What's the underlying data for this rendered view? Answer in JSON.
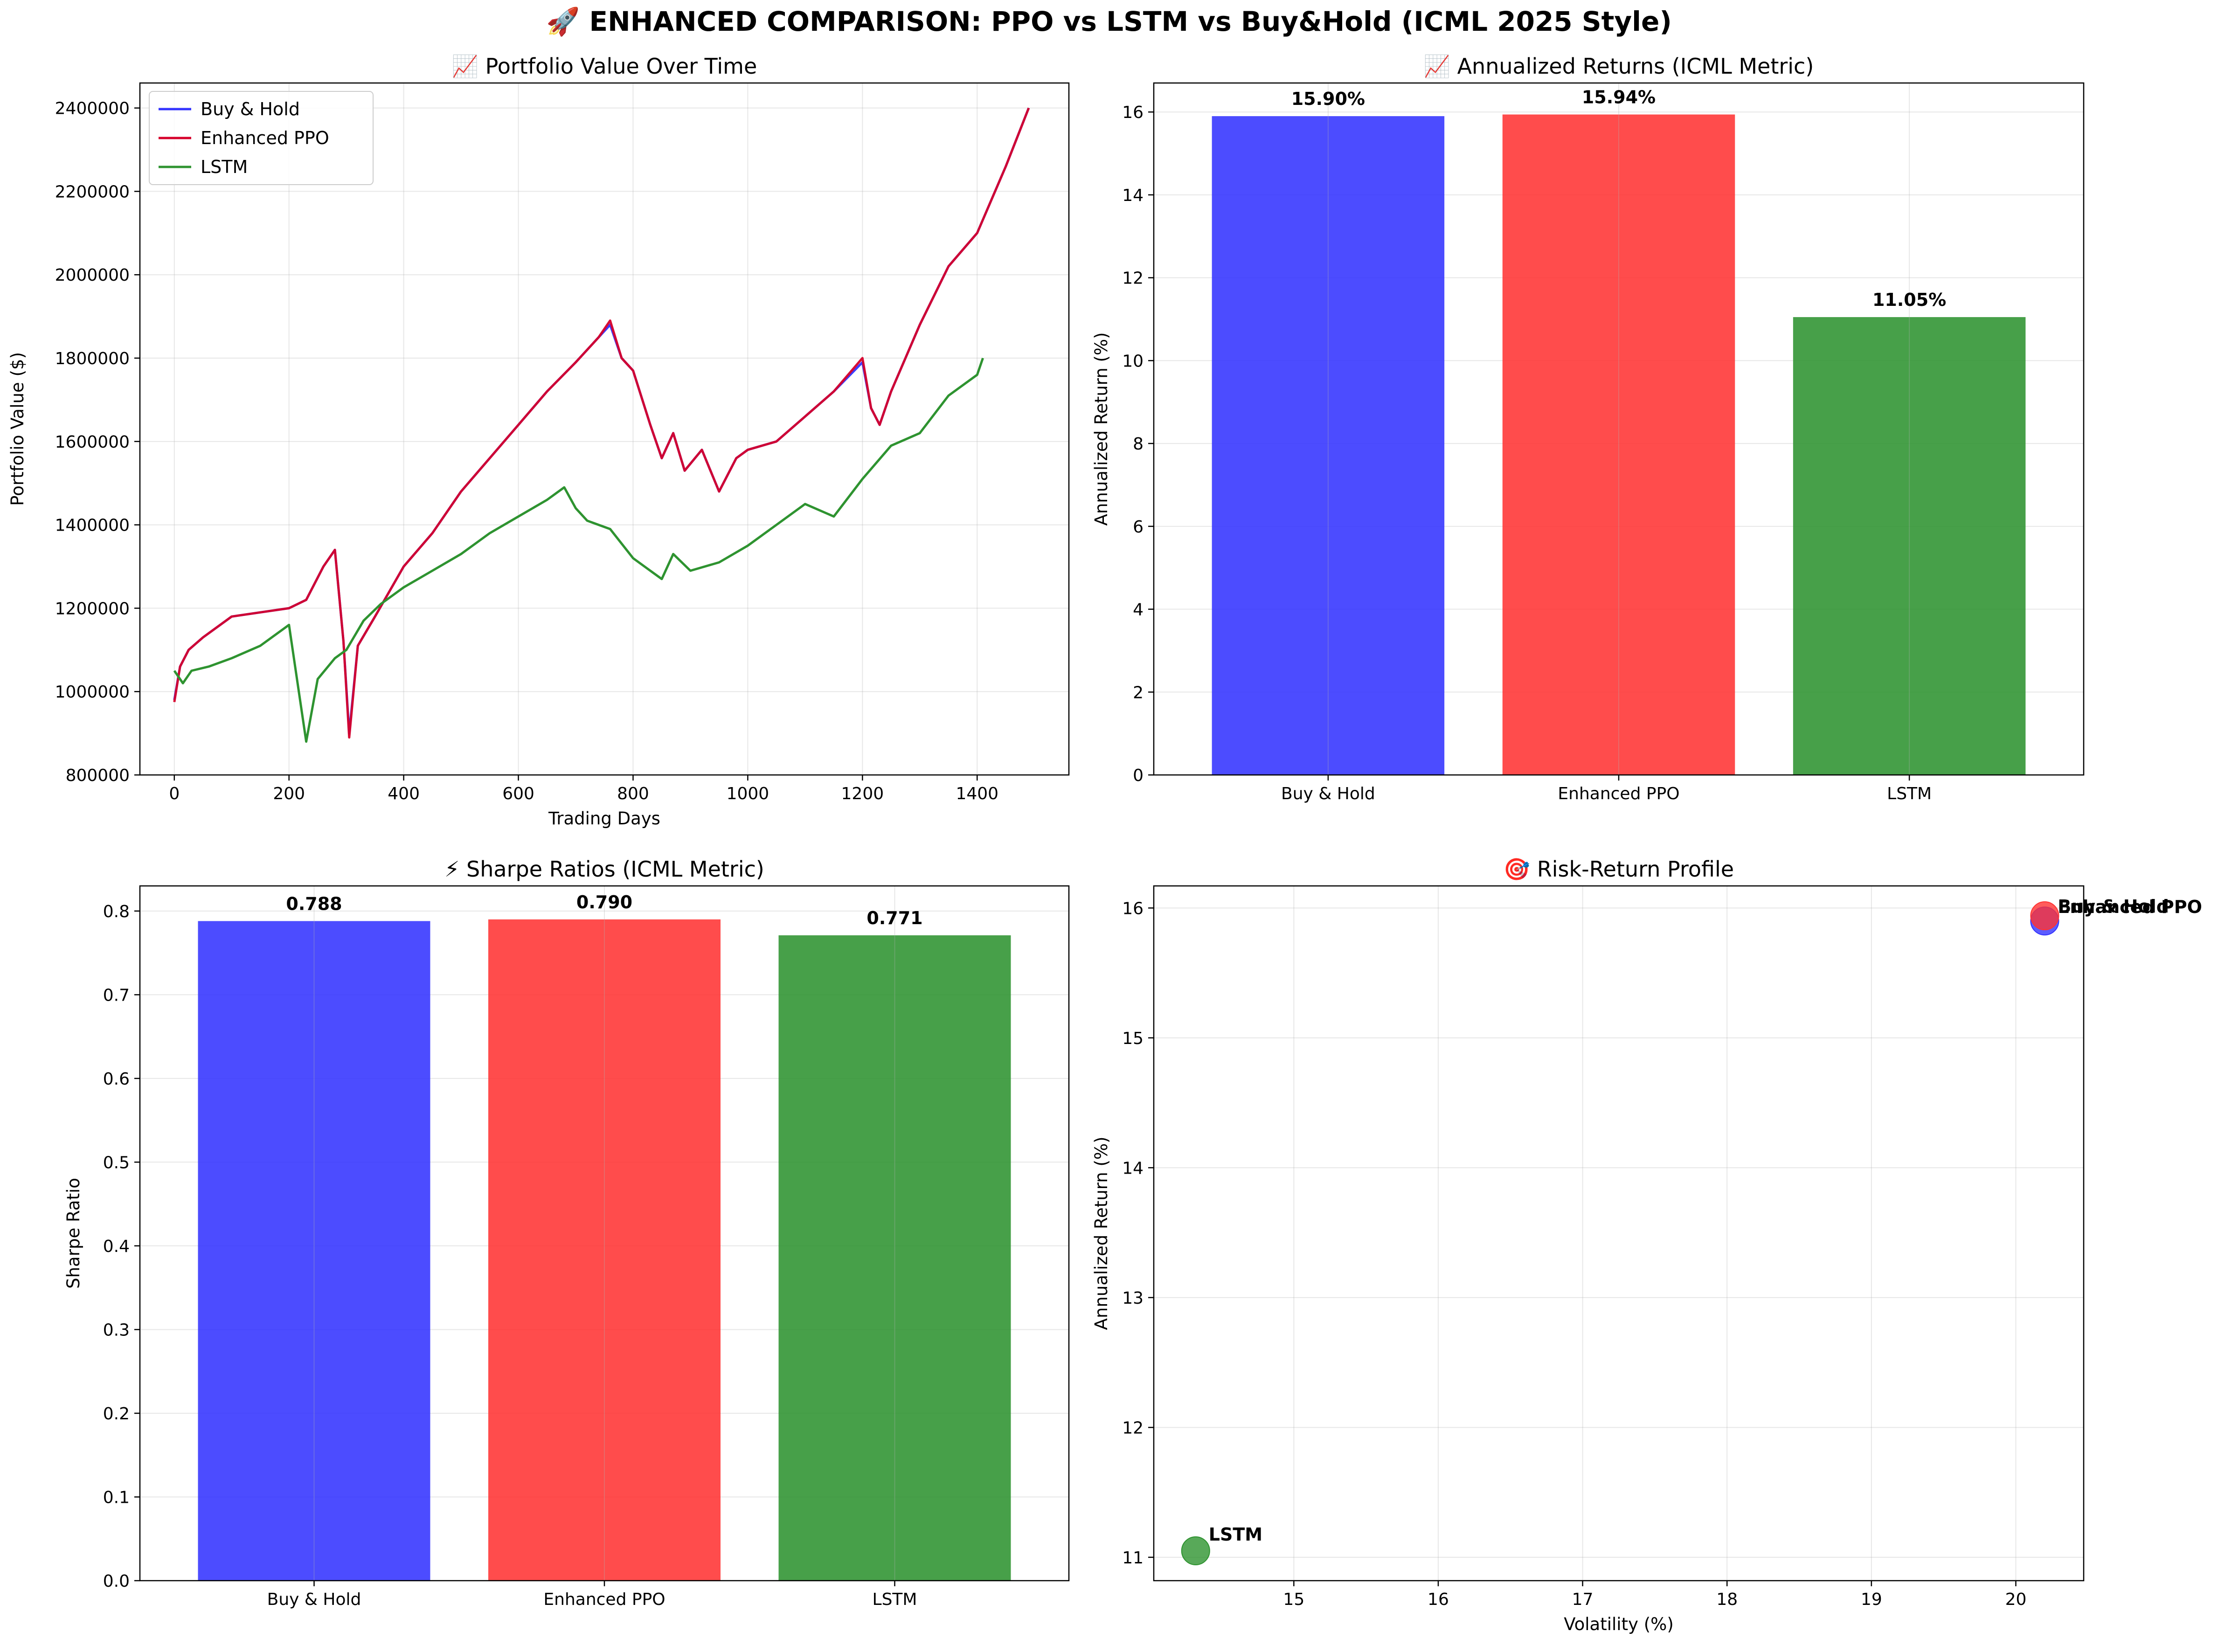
{
  "title": "🚀 ENHANCED COMPARISON: PPO vs LSTM vs Buy&Hold (ICML 2025 Style)",
  "colors": {
    "buy_hold": "#3333ff",
    "ppo": "#ff3333",
    "lstm": "#2e9330",
    "ppo_line": "#d6002a",
    "lstm_line": "#2e9330"
  },
  "chart_data": [
    {
      "type": "line",
      "title": "📈 Portfolio Value Over Time",
      "xlabel": "Trading Days",
      "ylabel": "Portfolio Value ($)",
      "xlim": [
        -60,
        1560
      ],
      "ylim": [
        800000,
        2460000
      ],
      "xticks": [
        0,
        200,
        400,
        600,
        800,
        1000,
        1200,
        1400
      ],
      "yticks": [
        800000,
        1000000,
        1200000,
        1400000,
        1600000,
        1800000,
        2000000,
        2200000,
        2400000
      ],
      "legend": "upper-left",
      "grid": true,
      "series": [
        {
          "name": "Buy & Hold",
          "x": [
            0,
            10,
            25,
            50,
            100,
            150,
            200,
            230,
            260,
            280,
            295,
            305,
            320,
            350,
            400,
            450,
            500,
            550,
            600,
            650,
            700,
            740,
            760,
            780,
            800,
            830,
            850,
            870,
            890,
            920,
            950,
            980,
            1000,
            1050,
            1100,
            1150,
            1200,
            1215,
            1230,
            1250,
            1300,
            1350,
            1400,
            1450,
            1490
          ],
          "y": [
            980000,
            1060000,
            1100000,
            1130000,
            1180000,
            1190000,
            1200000,
            1220000,
            1300000,
            1340000,
            1120000,
            900000,
            1110000,
            1180000,
            1300000,
            1380000,
            1480000,
            1560000,
            1640000,
            1720000,
            1790000,
            1850000,
            1880000,
            1800000,
            1770000,
            1640000,
            1560000,
            1620000,
            1530000,
            1580000,
            1480000,
            1560000,
            1580000,
            1600000,
            1660000,
            1720000,
            1790000,
            1680000,
            1640000,
            1720000,
            1880000,
            2020000,
            2100000,
            2260000,
            2400000
          ]
        },
        {
          "name": "Enhanced PPO",
          "x": [
            0,
            10,
            25,
            50,
            100,
            150,
            200,
            230,
            260,
            280,
            295,
            305,
            320,
            350,
            400,
            450,
            500,
            550,
            600,
            650,
            700,
            740,
            760,
            780,
            800,
            830,
            850,
            870,
            890,
            920,
            950,
            980,
            1000,
            1050,
            1100,
            1150,
            1200,
            1215,
            1230,
            1250,
            1300,
            1350,
            1400,
            1450,
            1490
          ],
          "y": [
            975000,
            1060000,
            1100000,
            1130000,
            1180000,
            1190000,
            1200000,
            1220000,
            1300000,
            1340000,
            1120000,
            890000,
            1110000,
            1180000,
            1300000,
            1380000,
            1480000,
            1560000,
            1640000,
            1720000,
            1790000,
            1850000,
            1890000,
            1800000,
            1770000,
            1640000,
            1560000,
            1620000,
            1530000,
            1580000,
            1480000,
            1560000,
            1580000,
            1600000,
            1660000,
            1720000,
            1800000,
            1680000,
            1640000,
            1720000,
            1880000,
            2020000,
            2100000,
            2260000,
            2400000
          ]
        },
        {
          "name": "LSTM",
          "x": [
            0,
            15,
            30,
            60,
            100,
            150,
            200,
            215,
            230,
            250,
            280,
            300,
            330,
            360,
            400,
            450,
            500,
            550,
            600,
            650,
            680,
            700,
            720,
            760,
            800,
            830,
            850,
            870,
            900,
            950,
            1000,
            1050,
            1100,
            1150,
            1200,
            1250,
            1300,
            1350,
            1400,
            1410
          ],
          "y": [
            1050000,
            1020000,
            1050000,
            1060000,
            1080000,
            1110000,
            1160000,
            1020000,
            880000,
            1030000,
            1080000,
            1100000,
            1170000,
            1210000,
            1250000,
            1290000,
            1330000,
            1380000,
            1420000,
            1460000,
            1490000,
            1440000,
            1410000,
            1390000,
            1320000,
            1290000,
            1270000,
            1330000,
            1290000,
            1310000,
            1350000,
            1400000,
            1450000,
            1420000,
            1510000,
            1590000,
            1620000,
            1710000,
            1760000,
            1800000
          ]
        }
      ]
    },
    {
      "type": "bar",
      "title": "📈 Annualized Returns (ICML Metric)",
      "xlabel": "",
      "ylabel": "Annualized Return (%)",
      "categories": [
        "Buy & Hold",
        "Enhanced PPO",
        "LSTM"
      ],
      "values": [
        15.9,
        15.94,
        11.05
      ],
      "value_labels": [
        "15.90%",
        "15.94%",
        "11.05%"
      ],
      "ylim": [
        0,
        16.7
      ],
      "yticks": [
        0,
        2,
        4,
        6,
        8,
        10,
        12,
        14,
        16
      ],
      "grid": true
    },
    {
      "type": "bar",
      "title": "⚡ Sharpe Ratios (ICML Metric)",
      "xlabel": "",
      "ylabel": "Sharpe Ratio",
      "categories": [
        "Buy & Hold",
        "Enhanced PPO",
        "LSTM"
      ],
      "values": [
        0.788,
        0.79,
        0.771
      ],
      "value_labels": [
        "0.788",
        "0.790",
        "0.771"
      ],
      "ylim": [
        0,
        0.83
      ],
      "yticks": [
        0.0,
        0.1,
        0.2,
        0.3,
        0.4,
        0.5,
        0.6,
        0.7,
        0.8
      ],
      "grid": true
    },
    {
      "type": "scatter",
      "title": "🎯 Risk-Return Profile",
      "xlabel": "Volatility (%)",
      "ylabel": "Annualized Return (%)",
      "xlim": [
        14.03,
        20.47
      ],
      "ylim": [
        10.82,
        16.17
      ],
      "xticks": [
        15,
        16,
        17,
        18,
        19,
        20
      ],
      "yticks": [
        11,
        12,
        13,
        14,
        15,
        16
      ],
      "grid": true,
      "points": [
        {
          "label": "Buy & Hold",
          "x": 20.2,
          "y": 15.9
        },
        {
          "label": "Enhanced PPO",
          "x": 20.2,
          "y": 15.94
        },
        {
          "label": "LSTM",
          "x": 14.32,
          "y": 11.05
        }
      ]
    }
  ]
}
